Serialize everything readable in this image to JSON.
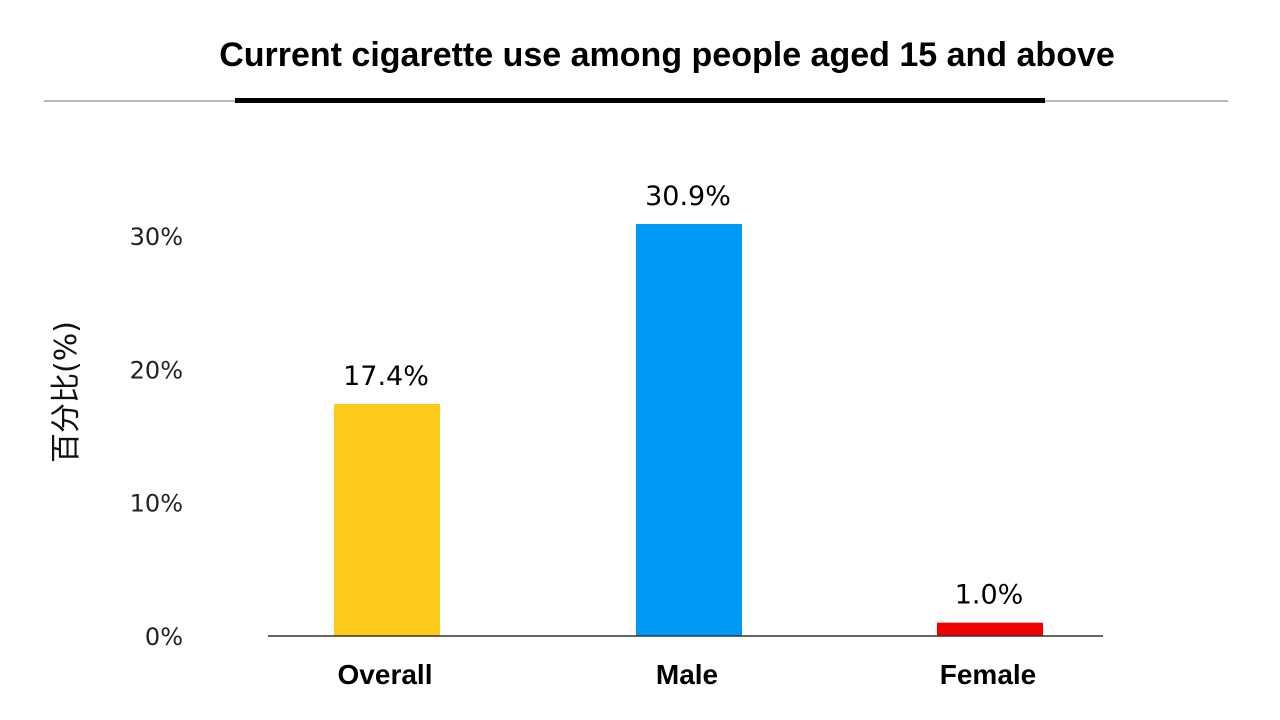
{
  "chart_data": {
    "type": "bar",
    "title": "Current cigarette use among people aged 15 and above",
    "xlabel": "",
    "ylabel": "百分比(%)",
    "categories": [
      "Overall",
      "Male",
      "Female"
    ],
    "values": [
      17.4,
      30.9,
      1.0
    ],
    "value_labels": [
      "17.4%",
      "30.9%",
      "1.0%"
    ],
    "colors": [
      "#FDCA1B",
      "#0099F5",
      "#F20000"
    ],
    "yticks": [
      0,
      10,
      20,
      30
    ],
    "ytick_labels": [
      "0%",
      "10%",
      "20%",
      "30%"
    ],
    "ylim": [
      0,
      30
    ],
    "grid": false,
    "legend": "none"
  }
}
